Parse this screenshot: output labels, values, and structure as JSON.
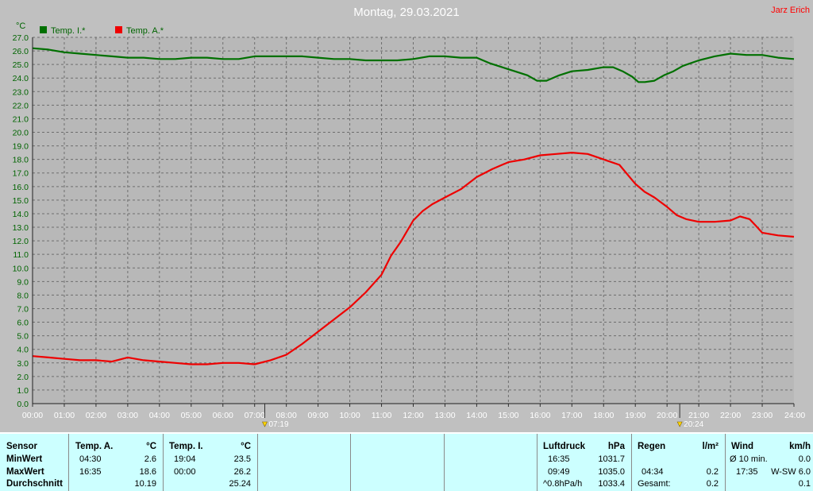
{
  "header": {
    "title": "Montag, 29.03.2021",
    "author": "Jarz Erich",
    "unit": "°C"
  },
  "colors": {
    "indoor": "#007000",
    "outdoor": "#ee0000",
    "plot_bg": "#b8b8b8",
    "grid": "#707070",
    "panel_bg": "#ccffff"
  },
  "chart_data": {
    "type": "line",
    "title": "Montag, 29.03.2021",
    "ylabel": "°C",
    "xlabel": "",
    "xlim": [
      0,
      24
    ],
    "ylim": [
      0,
      27
    ],
    "grid": true,
    "legend_position": "top-left",
    "y_ticks": [
      "0.0",
      "1.0",
      "2.0",
      "3.0",
      "4.0",
      "5.0",
      "6.0",
      "7.0",
      "8.0",
      "9.0",
      "10.0",
      "11.0",
      "12.0",
      "13.0",
      "14.0",
      "15.0",
      "16.0",
      "17.0",
      "18.0",
      "19.0",
      "20.0",
      "21.0",
      "22.0",
      "23.0",
      "24.0",
      "25.0",
      "26.0",
      "27.0"
    ],
    "x_ticks": [
      "00:00",
      "01:00",
      "02:00",
      "03:00",
      "04:00",
      "05:00",
      "06:00",
      "07:00",
      "08:00",
      "09:00",
      "10:00",
      "11:00",
      "12:00",
      "13:00",
      "14:00",
      "15:00",
      "16:00",
      "17:00",
      "18:00",
      "19:00",
      "20:00",
      "21:00",
      "22:00",
      "23:00",
      "24:00"
    ],
    "sunrise": {
      "time": "07:19",
      "x": 7.32
    },
    "sunset": {
      "time": "20:24",
      "x": 20.4
    },
    "series": [
      {
        "name": "Temp. I.*",
        "color": "#007000",
        "x": [
          0,
          0.5,
          1,
          1.5,
          2,
          2.5,
          3,
          3.5,
          4,
          4.5,
          5,
          5.5,
          6,
          6.5,
          7,
          7.5,
          8,
          8.5,
          9,
          9.5,
          10,
          10.5,
          11,
          11.5,
          12,
          12.5,
          13,
          13.5,
          14,
          14.4,
          14.8,
          15.2,
          15.6,
          15.9,
          16.2,
          16.6,
          17,
          17.5,
          18,
          18.3,
          18.6,
          18.9,
          19.1,
          19.3,
          19.6,
          19.9,
          20.2,
          20.5,
          21,
          21.5,
          22,
          22.5,
          23,
          23.5,
          24
        ],
        "y": [
          26.2,
          26.1,
          25.9,
          25.8,
          25.7,
          25.6,
          25.5,
          25.5,
          25.4,
          25.4,
          25.5,
          25.5,
          25.4,
          25.4,
          25.6,
          25.6,
          25.6,
          25.6,
          25.5,
          25.4,
          25.4,
          25.3,
          25.3,
          25.3,
          25.4,
          25.6,
          25.6,
          25.5,
          25.5,
          25.1,
          24.8,
          24.5,
          24.2,
          23.8,
          23.8,
          24.2,
          24.5,
          24.6,
          24.8,
          24.8,
          24.5,
          24.1,
          23.7,
          23.7,
          23.8,
          24.2,
          24.5,
          24.9,
          25.3,
          25.6,
          25.8,
          25.7,
          25.7,
          25.5,
          25.4
        ]
      },
      {
        "name": "Temp. A.*",
        "color": "#ee0000",
        "x": [
          0,
          0.5,
          1,
          1.5,
          2,
          2.5,
          3,
          3.5,
          4,
          4.5,
          5,
          5.5,
          6,
          6.5,
          7,
          7.5,
          8,
          8.5,
          9,
          9.5,
          10,
          10.5,
          11,
          11.3,
          11.6,
          12,
          12.3,
          12.6,
          13,
          13.5,
          14,
          14.5,
          15,
          15.5,
          16,
          16.5,
          17,
          17.5,
          18,
          18.5,
          19,
          19.3,
          19.6,
          20,
          20.3,
          20.6,
          21,
          21.5,
          22,
          22.3,
          22.6,
          22.8,
          23,
          23.5,
          24
        ],
        "y": [
          3.5,
          3.4,
          3.3,
          3.2,
          3.2,
          3.1,
          3.4,
          3.2,
          3.1,
          3.0,
          2.9,
          2.9,
          3.0,
          3.0,
          2.9,
          3.2,
          3.6,
          4.4,
          5.3,
          6.2,
          7.1,
          8.2,
          9.5,
          10.9,
          11.9,
          13.5,
          14.2,
          14.7,
          15.2,
          15.8,
          16.7,
          17.3,
          17.8,
          18.0,
          18.3,
          18.4,
          18.5,
          18.4,
          18.0,
          17.6,
          16.2,
          15.6,
          15.2,
          14.5,
          13.9,
          13.6,
          13.4,
          13.4,
          13.5,
          13.8,
          13.6,
          13.1,
          12.6,
          12.4,
          12.3
        ]
      }
    ]
  },
  "stats": {
    "sensor": {
      "header": "Sensor",
      "rows": [
        "MinWert",
        "MaxWert",
        "Durchschnitt"
      ]
    },
    "temp_a": {
      "header": "Temp. A.",
      "unit": "°C",
      "min_time": "04:30",
      "min_val": "2.6",
      "max_time": "16:35",
      "max_val": "18.6",
      "avg": "10.19"
    },
    "temp_i": {
      "header": "Temp. I.",
      "unit": "°C",
      "min_time": "19:04",
      "min_val": "23.5",
      "max_time": "00:00",
      "max_val": "26.2",
      "avg": "25.24"
    },
    "pressure": {
      "header": "Luftdruck",
      "unit": "hPa",
      "min_time": "16:35",
      "min_val": "1031.7",
      "max_time": "09:49",
      "max_val": "1035.0",
      "trend": "^0.8hPa/h",
      "current": "1033.4"
    },
    "rain": {
      "header": "Regen",
      "unit": "l/m²",
      "r2_time": "04:34",
      "r2_val": "0.2",
      "total_label": "Gesamt:",
      "total_val": "0.2"
    },
    "wind": {
      "header": "Wind",
      "unit": "km/h",
      "avg_label": "Ø 10 min.",
      "avg_val": "0.0",
      "gust_time": "17:35",
      "gust_val": "W-SW 6.0",
      "r3_val": "0.1"
    }
  }
}
